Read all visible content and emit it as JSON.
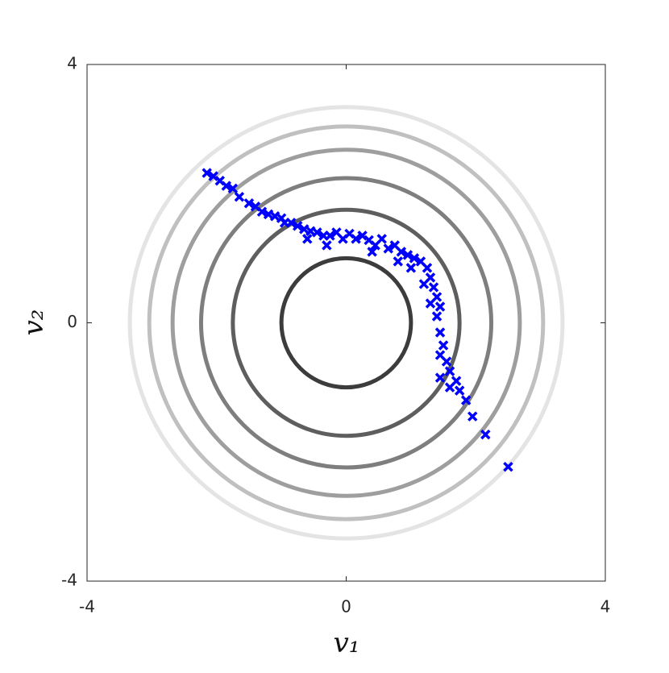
{
  "chart_data": {
    "type": "scatter",
    "x_label": "v₁",
    "y_label": "v₂",
    "xlim": [
      -4,
      4
    ],
    "ylim": [
      -4,
      4
    ],
    "xticks": [
      -4,
      0,
      4
    ],
    "yticks": [
      -4,
      0,
      4
    ],
    "contours": [
      {
        "radius": 1,
        "color": "#3c3c3c"
      },
      {
        "radius": 1.75,
        "color": "#5e5e5e"
      },
      {
        "radius": 2.24,
        "color": "#7e7e7e"
      },
      {
        "radius": 2.68,
        "color": "#9e9e9e"
      },
      {
        "radius": 3.04,
        "color": "#c0c0c0"
      },
      {
        "radius": 3.34,
        "color": "#e4e4e4"
      }
    ],
    "x": [
      -2.15,
      -2.05,
      -1.95,
      -1.85,
      -1.75,
      -1.65,
      -1.5,
      -1.4,
      -1.3,
      -1.2,
      -1.1,
      -1.0,
      -0.95,
      -0.85,
      -0.75,
      -0.65,
      -0.6,
      -0.55,
      -0.45,
      -0.35,
      -0.3,
      -0.25,
      -0.15,
      -0.05,
      0.05,
      0.15,
      0.25,
      0.35,
      0.4,
      0.45,
      0.55,
      0.65,
      0.75,
      0.8,
      0.85,
      0.95,
      1.0,
      1.05,
      1.15,
      1.2,
      1.25,
      1.3,
      1.3,
      1.35,
      1.4,
      1.45,
      1.4,
      1.45,
      1.5,
      1.45,
      1.45,
      1.55,
      1.6,
      1.6,
      1.7,
      1.75,
      1.85,
      1.95,
      2.15,
      2.5
    ],
    "series": [
      {
        "color": "#0000ff",
        "values": [
          2.32,
          2.27,
          2.2,
          2.12,
          2.08,
          1.95,
          1.85,
          1.8,
          1.72,
          1.68,
          1.65,
          1.62,
          1.55,
          1.55,
          1.5,
          1.45,
          1.3,
          1.42,
          1.4,
          1.35,
          1.2,
          1.35,
          1.4,
          1.3,
          1.38,
          1.3,
          1.35,
          1.28,
          1.1,
          1.2,
          1.3,
          1.15,
          1.2,
          0.95,
          1.1,
          1.05,
          0.85,
          1.0,
          0.95,
          0.6,
          0.85,
          0.7,
          0.3,
          0.55,
          0.4,
          0.25,
          0.1,
          -0.15,
          -0.35,
          -0.5,
          -0.85,
          -0.6,
          -0.75,
          -1.0,
          -0.9,
          -1.05,
          -1.2,
          -1.45,
          -1.73,
          -2.23
        ]
      }
    ]
  }
}
